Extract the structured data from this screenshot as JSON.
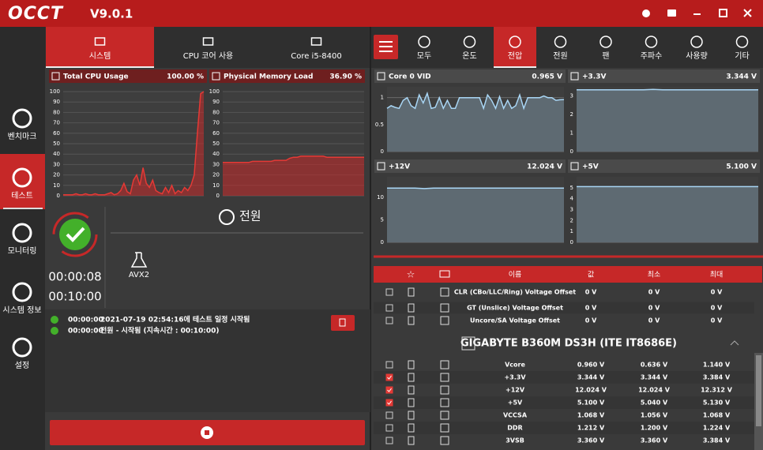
{
  "app": {
    "logo": "OCCT",
    "version": "V9.0.1"
  },
  "sidebar": {
    "active": 1,
    "items": [
      "벤치마크",
      "테스트",
      "모니터링",
      "시스템 정보",
      "설정"
    ]
  },
  "left_tabs": {
    "active": 0,
    "items": [
      "시스템",
      "CPU 코어 사용",
      "Core i5-8400"
    ]
  },
  "cpu_chart": {
    "title": "Total CPU Usage",
    "current": "100.00 %",
    "ylim": [
      0,
      100
    ],
    "yticks": [
      0,
      10,
      20,
      30,
      40,
      50,
      60,
      70,
      80,
      90,
      100
    ],
    "values": [
      1,
      1,
      1,
      1,
      2,
      1,
      1,
      2,
      1,
      1,
      2,
      1,
      1,
      1,
      2,
      3,
      1,
      2,
      5,
      12,
      4,
      2,
      15,
      20,
      10,
      27,
      12,
      8,
      15,
      5,
      3,
      2,
      8,
      3,
      10,
      2,
      5,
      3,
      8,
      5,
      10,
      20,
      60,
      98,
      100
    ]
  },
  "memory_chart": {
    "title": "Physical Memory Load",
    "current": "36.90 %",
    "ylim": [
      0,
      100
    ],
    "yticks": [
      0,
      10,
      20,
      30,
      40,
      50,
      60,
      70,
      80,
      90,
      100
    ],
    "values": [
      32,
      32,
      32,
      32,
      32,
      32,
      32,
      32,
      33,
      33,
      33,
      33,
      33,
      33,
      34,
      34,
      34,
      34,
      36,
      37,
      37,
      38,
      38,
      38,
      38,
      38,
      38,
      38,
      37,
      37,
      37,
      37,
      37,
      37,
      37,
      37,
      37,
      37,
      37
    ]
  },
  "test": {
    "elapsed": "00:00:08",
    "duration": "00:10:00",
    "name": "전원",
    "load": "AVX2"
  },
  "log": [
    {
      "time": "00:00:00",
      "message": "2021-07-19 02:54:16에 테스트 일정 시작됨"
    },
    {
      "time": "00:00:00",
      "message": "전원 - 시작됨 (지속시간 : 00:10:00)"
    }
  ],
  "right_tabs": {
    "active": 2,
    "items": [
      "모두",
      "온도",
      "전압",
      "전원",
      "팬",
      "주파수",
      "사용량",
      "기타"
    ]
  },
  "monitor_charts": [
    {
      "title": "Core 0 VID",
      "current": "0.965 V",
      "ylim": [
        0,
        1.2
      ],
      "yticks": [
        0,
        0.5,
        1
      ],
      "values": [
        0.8,
        0.85,
        0.82,
        0.8,
        0.95,
        1.0,
        0.85,
        0.8,
        1.05,
        0.9,
        1.08,
        0.8,
        0.82,
        1.0,
        0.8,
        0.95,
        0.8,
        0.8,
        1.0,
        1.0,
        1.0,
        1.0,
        1.0,
        1.0,
        0.8,
        1.05,
        0.95,
        0.8,
        1.02,
        0.8,
        0.95,
        0.8,
        0.85,
        1.05,
        0.8,
        1.0,
        1.0,
        1.0,
        1.0,
        1.03,
        1.0,
        1.0,
        0.95,
        0.96,
        0.965
      ]
    },
    {
      "title": "+3.3V",
      "current": "3.344 V",
      "ylim": [
        0,
        3.5
      ],
      "yticks": [
        0,
        1,
        2,
        3
      ],
      "values": [
        3.344,
        3.344,
        3.344,
        3.344,
        3.344,
        3.344,
        3.344,
        3.344,
        3.36,
        3.344,
        3.344,
        3.344,
        3.344,
        3.344,
        3.344,
        3.344,
        3.344,
        3.344,
        3.344,
        3.344
      ]
    },
    {
      "title": "+12V",
      "current": "12.024 V",
      "ylim": [
        0,
        14.5
      ],
      "yticks": [
        0,
        5,
        10
      ],
      "values": [
        12.024,
        12.024,
        12.024,
        12.024,
        11.9,
        12.024,
        12.024,
        12.024,
        12.024,
        12.024,
        12.024,
        12.024,
        12.024,
        12.024,
        12.024,
        12.024,
        12.024,
        12.024,
        12.024,
        12.024
      ]
    },
    {
      "title": "+5V",
      "current": "5.100 V",
      "ylim": [
        0,
        6
      ],
      "yticks": [
        0,
        1,
        2,
        3,
        4,
        5
      ],
      "values": [
        5.1,
        5.1,
        5.1,
        5.1,
        5.1,
        5.1,
        5.1,
        5.1,
        5.1,
        5.1,
        5.1,
        5.1,
        5.1,
        5.1,
        5.1,
        5.1,
        5.1,
        5.1,
        5.1,
        5.1
      ]
    }
  ],
  "table": {
    "columns": [
      "이름",
      "값",
      "최소",
      "최대"
    ],
    "rows": [
      {
        "name": "CLR (CBo/LLC/Ring) Voltage Offset",
        "value": "0 V",
        "min": "0 V",
        "max": "0 V",
        "checked": false
      },
      {
        "name": "GT (Unslice) Voltage Offset",
        "value": "0 V",
        "min": "0 V",
        "max": "0 V",
        "checked": false
      },
      {
        "name": "Uncore/SA Voltage Offset",
        "value": "0 V",
        "min": "0 V",
        "max": "0 V",
        "checked": false
      }
    ],
    "group": "GIGABYTE B360M DS3H (ITE IT8686E)",
    "group_rows": [
      {
        "name": "Vcore",
        "value": "0.960 V",
        "min": "0.636 V",
        "max": "1.140 V",
        "checked": false
      },
      {
        "name": "+3.3V",
        "value": "3.344 V",
        "min": "3.344 V",
        "max": "3.384 V",
        "checked": true
      },
      {
        "name": "+12V",
        "value": "12.024 V",
        "min": "12.024 V",
        "max": "12.312 V",
        "checked": true
      },
      {
        "name": "+5V",
        "value": "5.100 V",
        "min": "5.040 V",
        "max": "5.130 V",
        "checked": true
      },
      {
        "name": "VCCSA",
        "value": "1.068 V",
        "min": "1.056 V",
        "max": "1.068 V",
        "checked": false
      },
      {
        "name": "DDR",
        "value": "1.212 V",
        "min": "1.200 V",
        "max": "1.224 V",
        "checked": false
      },
      {
        "name": "3VSB",
        "value": "3.360 V",
        "min": "3.360 V",
        "max": "3.384 V",
        "checked": false
      }
    ]
  }
}
